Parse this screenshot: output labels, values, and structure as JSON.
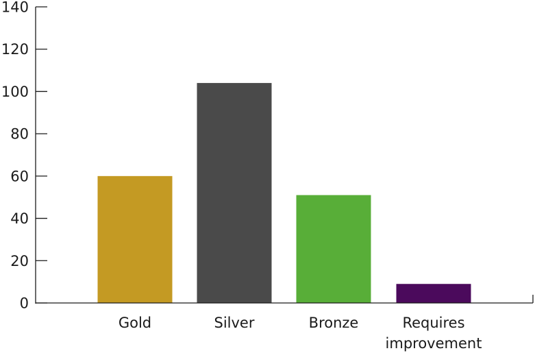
{
  "chart_data": {
    "type": "bar",
    "categories": [
      "Gold",
      "Silver",
      "Bronze",
      "Requires improvement"
    ],
    "category_label_lines": [
      [
        "Gold"
      ],
      [
        "Silver"
      ],
      [
        "Bronze"
      ],
      [
        "Requires",
        "improvement"
      ]
    ],
    "values": [
      60,
      104,
      51,
      9
    ],
    "colors": [
      "#C49A23",
      "#4A4A4A",
      "#58AE38",
      "#4B0A5C"
    ],
    "ylim": [
      0,
      140
    ],
    "yticks": [
      0,
      20,
      40,
      60,
      80,
      100,
      120,
      140
    ],
    "title": "",
    "xlabel": "",
    "ylabel": "",
    "grid": false,
    "legend": "none"
  }
}
